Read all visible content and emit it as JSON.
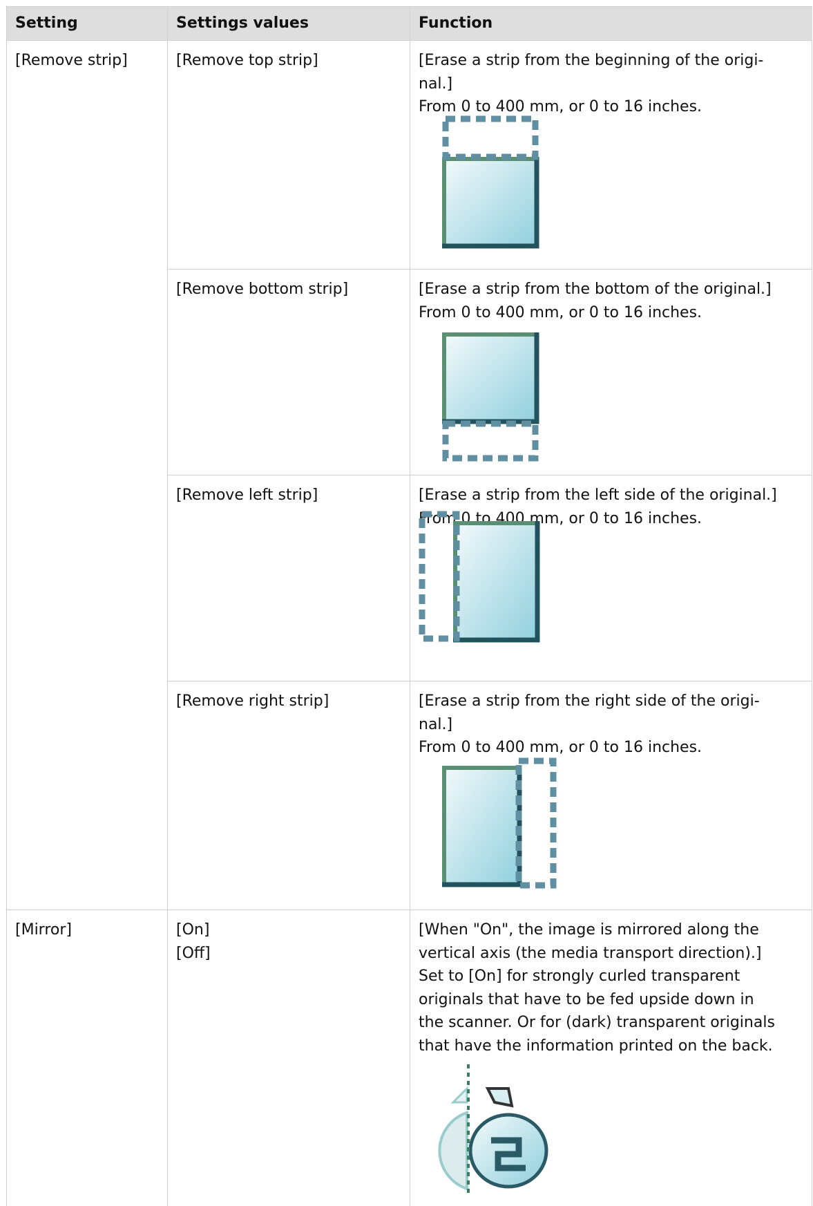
{
  "header": {
    "columns": [
      "Setting",
      "Settings values",
      "Function"
    ]
  },
  "rows": [
    {
      "setting": "[Remove strip]",
      "options": [
        {
          "values": [
            "[Remove top strip]"
          ],
          "function": [
            "[Erase a strip from the beginning of the origi-",
            "nal.]",
            "From 0 to 400 mm, or 0 to 16 inches."
          ]
        },
        {
          "values": [
            "[Remove bottom strip]"
          ],
          "function": [
            "[Erase a strip from the bottom of the original.]",
            "From 0 to 400 mm, or 0 to 16 inches."
          ]
        },
        {
          "values": [
            "[Remove left strip]"
          ],
          "function": [
            "[Erase a strip from the left side of the original.]",
            "From 0 to 400 mm, or 0 to 16 inches."
          ]
        },
        {
          "values": [
            "[Remove right strip]"
          ],
          "function": [
            "[Erase a strip from the right side of the origi-",
            "nal.]",
            "From 0 to 400 mm, or 0 to 16 inches."
          ]
        }
      ]
    },
    {
      "setting": "[Mirror]",
      "options": [
        {
          "values": [
            "[On]",
            "[Off]"
          ],
          "function": [
            "[When \"On\", the image is mirrored along the",
            "vertical axis (the media transport direction).]",
            "Set to [On] for strongly curled transparent",
            "originals that have to be fed upside down in",
            "the scanner. Or for (dark) transparent originals",
            "that have the information printed on the back."
          ]
        }
      ]
    }
  ]
}
